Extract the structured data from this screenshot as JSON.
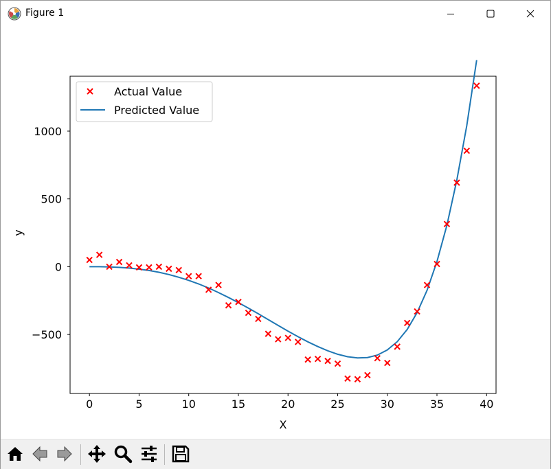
{
  "window": {
    "title": "Figure 1",
    "app_icon": "matplotlib-icon",
    "controls": [
      "minimize-icon",
      "maximize-icon",
      "close-icon"
    ]
  },
  "toolbar": {
    "buttons": [
      {
        "name": "home-button",
        "icon": "home-icon",
        "enabled": true
      },
      {
        "name": "back-button",
        "icon": "arrow-left-icon",
        "enabled": false
      },
      {
        "name": "forward-button",
        "icon": "arrow-right-icon",
        "enabled": false
      },
      {
        "name": "pan-button",
        "icon": "move-icon",
        "enabled": true
      },
      {
        "name": "zoom-button",
        "icon": "magnifier-icon",
        "enabled": true
      },
      {
        "name": "configure-subplots-button",
        "icon": "sliders-icon",
        "enabled": true
      },
      {
        "name": "save-button",
        "icon": "floppy-disk-icon",
        "enabled": true
      }
    ]
  },
  "chart_data": {
    "type": "scatter",
    "title": "",
    "xlabel": "X",
    "ylabel": "y",
    "xlim": [
      -1.95,
      40.95
    ],
    "ylim": [
      -935,
      1405
    ],
    "xticks": [
      0,
      5,
      10,
      15,
      20,
      25,
      30,
      35,
      40
    ],
    "yticks": [
      -500,
      0,
      500,
      1000
    ],
    "xtick_labels": [
      "0",
      "5",
      "10",
      "15",
      "20",
      "25",
      "30",
      "35",
      "40"
    ],
    "ytick_labels": [
      "−500",
      "0",
      "500",
      "1000"
    ],
    "grid": false,
    "legend_position": "top-left",
    "series": [
      {
        "name": "Actual Value",
        "kind": "scatter",
        "marker": "x",
        "color": "#ff0000",
        "x": [
          0,
          1,
          2,
          3,
          4,
          5,
          6,
          7,
          8,
          9,
          10,
          11,
          12,
          13,
          14,
          15,
          16,
          17,
          18,
          19,
          20,
          21,
          22,
          23,
          24,
          25,
          26,
          27,
          28,
          29,
          30,
          31,
          32,
          33,
          34,
          35,
          36,
          37,
          38,
          39
        ],
        "y": [
          50,
          88,
          0,
          35,
          10,
          -5,
          -5,
          0,
          -15,
          -25,
          -70,
          -70,
          -170,
          -135,
          -285,
          -260,
          -340,
          -385,
          -495,
          -535,
          -525,
          -555,
          -685,
          -680,
          -695,
          -715,
          -825,
          -830,
          -800,
          -675,
          -710,
          -590,
          -415,
          -330,
          -135,
          20,
          315,
          620,
          855,
          1335
        ]
      },
      {
        "name": "Predicted Value",
        "kind": "line",
        "color": "#1f77b4",
        "x": [
          0,
          1,
          2,
          3,
          4,
          5,
          6,
          7,
          8,
          9,
          10,
          11,
          12,
          13,
          14,
          15,
          16,
          17,
          18,
          19,
          20,
          21,
          22,
          23,
          24,
          25,
          26,
          27,
          28,
          29,
          30,
          31,
          32,
          33,
          34,
          35,
          36,
          37,
          38,
          39
        ],
        "y": [
          0,
          0,
          -2,
          -5,
          -10,
          -18,
          -28,
          -41,
          -58,
          -78,
          -101,
          -127,
          -157,
          -191,
          -227,
          -265,
          -305,
          -347,
          -390,
          -433,
          -475,
          -516,
          -554,
          -589,
          -620,
          -646,
          -664,
          -673,
          -670,
          -652,
          -614,
          -553,
          -463,
          -339,
          -174,
          38,
          306,
          638,
          1041,
          1524
        ]
      }
    ]
  }
}
